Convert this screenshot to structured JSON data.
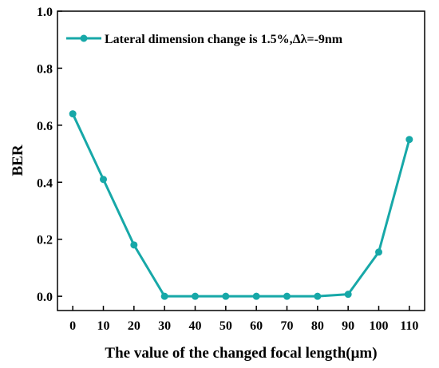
{
  "chart_data": {
    "type": "line",
    "xlabel": "The value of the changed focal length(μm)",
    "ylabel": "BER",
    "xlim": [
      -5,
      115
    ],
    "ylim": [
      -0.05,
      1.0
    ],
    "x_ticks": [
      0,
      10,
      20,
      30,
      40,
      50,
      60,
      70,
      80,
      90,
      100,
      110
    ],
    "y_ticks": [
      0.0,
      0.2,
      0.4,
      0.6,
      0.8,
      1.0
    ],
    "x_tick_labels": [
      "0",
      "10",
      "20",
      "30",
      "40",
      "50",
      "60",
      "70",
      "80",
      "90",
      "100",
      "110"
    ],
    "y_tick_labels": [
      "0.0",
      "0.2",
      "0.4",
      "0.6",
      "0.8",
      "1.0"
    ],
    "grid": false,
    "legend_position": "top",
    "series": [
      {
        "name": "Lateral dimension change is 1.5%,Δλ=-9nm",
        "color": "#17a8a8",
        "x": [
          0,
          10,
          20,
          30,
          40,
          50,
          60,
          70,
          80,
          90,
          100,
          110
        ],
        "y": [
          0.64,
          0.41,
          0.18,
          0.0,
          0.0,
          0.0,
          0.0,
          0.0,
          0.0,
          0.007,
          0.155,
          0.55
        ]
      }
    ]
  }
}
